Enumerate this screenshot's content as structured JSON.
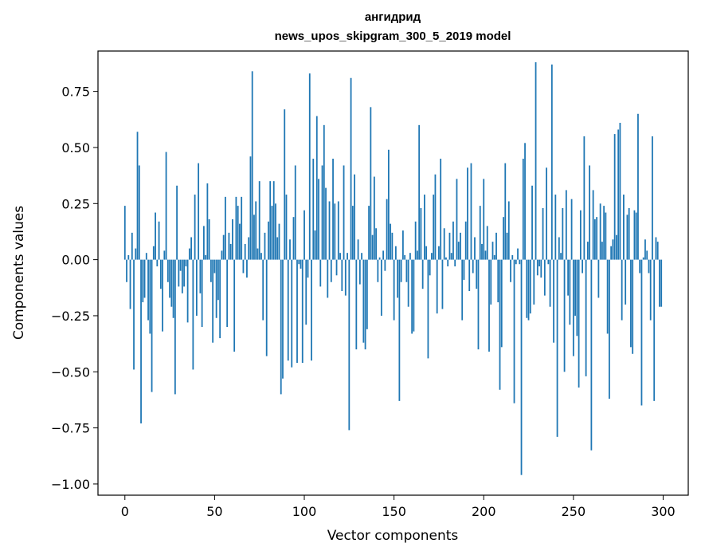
{
  "chart_data": {
    "type": "bar",
    "title": "ангидрид",
    "subtitle": "news_upos_skipgram_300_5_2019 model",
    "xlabel": "Vector components",
    "ylabel": "Components values",
    "xlim": [
      -15,
      314
    ],
    "ylim": [
      -1.05,
      0.93
    ],
    "xticks": [
      0,
      50,
      100,
      150,
      200,
      250,
      300
    ],
    "yticks": [
      -1.0,
      -0.75,
      -0.5,
      -0.25,
      0.0,
      0.25,
      0.5,
      0.75
    ],
    "ytick_labels": [
      "−1.00",
      "−0.75",
      "−0.50",
      "−0.25",
      "0.00",
      "0.25",
      "0.50",
      "0.75"
    ],
    "grid": false,
    "bar_color": "#1f77b4",
    "x": [
      0,
      1,
      2,
      3,
      4,
      5,
      6,
      7,
      8,
      9,
      10,
      11,
      12,
      13,
      14,
      15,
      16,
      17,
      18,
      19,
      20,
      21,
      22,
      23,
      24,
      25,
      26,
      27,
      28,
      29,
      30,
      31,
      32,
      33,
      34,
      35,
      36,
      37,
      38,
      39,
      40,
      41,
      42,
      43,
      44,
      45,
      46,
      47,
      48,
      49,
      50,
      51,
      52,
      53,
      54,
      55,
      56,
      57,
      58,
      59,
      60,
      61,
      62,
      63,
      64,
      65,
      66,
      67,
      68,
      69,
      70,
      71,
      72,
      73,
      74,
      75,
      76,
      77,
      78,
      79,
      80,
      81,
      82,
      83,
      84,
      85,
      86,
      87,
      88,
      89,
      90,
      91,
      92,
      93,
      94,
      95,
      96,
      97,
      98,
      99,
      100,
      101,
      102,
      103,
      104,
      105,
      106,
      107,
      108,
      109,
      110,
      111,
      112,
      113,
      114,
      115,
      116,
      117,
      118,
      119,
      120,
      121,
      122,
      123,
      124,
      125,
      126,
      127,
      128,
      129,
      130,
      131,
      132,
      133,
      134,
      135,
      136,
      137,
      138,
      139,
      140,
      141,
      142,
      143,
      144,
      145,
      146,
      147,
      148,
      149,
      150,
      151,
      152,
      153,
      154,
      155,
      156,
      157,
      158,
      159,
      160,
      161,
      162,
      163,
      164,
      165,
      166,
      167,
      168,
      169,
      170,
      171,
      172,
      173,
      174,
      175,
      176,
      177,
      178,
      179,
      180,
      181,
      182,
      183,
      184,
      185,
      186,
      187,
      188,
      189,
      190,
      191,
      192,
      193,
      194,
      195,
      196,
      197,
      198,
      199,
      200,
      201,
      202,
      203,
      204,
      205,
      206,
      207,
      208,
      209,
      210,
      211,
      212,
      213,
      214,
      215,
      216,
      217,
      218,
      219,
      220,
      221,
      222,
      223,
      224,
      225,
      226,
      227,
      228,
      229,
      230,
      231,
      232,
      233,
      234,
      235,
      236,
      237,
      238,
      239,
      240,
      241,
      242,
      243,
      244,
      245,
      246,
      247,
      248,
      249,
      250,
      251,
      252,
      253,
      254,
      255,
      256,
      257,
      258,
      259,
      260,
      261,
      262,
      263,
      264,
      265,
      266,
      267,
      268,
      269,
      270,
      271,
      272,
      273,
      274,
      275,
      276,
      277,
      278,
      279,
      280,
      281,
      282,
      283,
      284,
      285,
      286,
      287,
      288,
      289,
      290,
      291,
      292,
      293,
      294,
      295,
      296,
      297,
      298,
      299
    ],
    "values": [
      0.24,
      -0.1,
      0.02,
      -0.22,
      0.12,
      -0.49,
      0.05,
      0.57,
      0.42,
      -0.73,
      -0.19,
      -0.17,
      0.03,
      -0.27,
      -0.33,
      -0.59,
      0.06,
      0.21,
      -0.03,
      0.17,
      -0.13,
      -0.32,
      0.04,
      0.48,
      -0.1,
      -0.17,
      -0.21,
      -0.26,
      -0.6,
      0.33,
      -0.12,
      -0.05,
      -0.15,
      -0.12,
      -0.03,
      -0.28,
      0.05,
      0.1,
      -0.49,
      0.29,
      -0.25,
      0.43,
      -0.15,
      -0.3,
      0.15,
      0.02,
      0.34,
      0.18,
      -0.1,
      -0.37,
      -0.06,
      -0.26,
      -0.18,
      -0.35,
      0.04,
      0.11,
      0.28,
      -0.3,
      0.12,
      0.07,
      0.18,
      -0.41,
      0.28,
      0.24,
      0.16,
      0.28,
      -0.06,
      0.07,
      -0.08,
      0.1,
      0.46,
      0.84,
      0.2,
      0.26,
      0.05,
      0.35,
      0.03,
      -0.27,
      0.12,
      -0.43,
      0.17,
      0.35,
      0.24,
      0.35,
      0.25,
      0.1,
      0.16,
      -0.6,
      -0.53,
      0.67,
      0.29,
      -0.45,
      0.09,
      -0.48,
      0.19,
      0.42,
      -0.46,
      -0.02,
      -0.04,
      -0.46,
      0.22,
      -0.29,
      -0.08,
      0.83,
      -0.45,
      0.45,
      0.13,
      0.64,
      0.36,
      -0.12,
      0.42,
      0.6,
      0.32,
      -0.17,
      0.26,
      -0.1,
      0.45,
      0.25,
      -0.07,
      0.26,
      0.03,
      -0.14,
      0.42,
      -0.16,
      0.03,
      -0.76,
      0.81,
      0.24,
      0.38,
      -0.4,
      0.09,
      -0.11,
      0.03,
      -0.37,
      -0.4,
      -0.31,
      0.24,
      0.68,
      0.11,
      0.37,
      0.14,
      -0.1,
      0.01,
      -0.25,
      0.04,
      -0.05,
      0.27,
      0.49,
      0.16,
      0.12,
      -0.27,
      0.06,
      -0.17,
      -0.63,
      -0.1,
      0.13,
      0.02,
      -0.1,
      -0.21,
      0.03,
      -0.33,
      -0.32,
      0.17,
      0.04,
      0.6,
      0.23,
      -0.13,
      0.29,
      0.06,
      -0.44,
      -0.07,
      0.03,
      0.29,
      0.38,
      -0.24,
      0.06,
      0.45,
      -0.22,
      0.14,
      0.01,
      -0.03,
      0.12,
      0.03,
      0.17,
      -0.03,
      0.36,
      0.08,
      0.12,
      -0.27,
      -0.09,
      0.17,
      0.41,
      -0.14,
      0.43,
      -0.06,
      0.1,
      -0.13,
      -0.4,
      0.24,
      0.07,
      0.36,
      0.04,
      0.15,
      -0.41,
      -0.2,
      0.08,
      0.02,
      0.12,
      -0.19,
      -0.58,
      -0.39,
      0.19,
      0.43,
      0.12,
      0.26,
      -0.1,
      0.02,
      -0.64,
      -0.02,
      0.05,
      -0.02,
      -0.96,
      0.45,
      0.52,
      -0.26,
      -0.27,
      -0.24,
      0.33,
      -0.2,
      0.88,
      -0.07,
      -0.03,
      -0.08,
      0.23,
      -0.16,
      0.41,
      -0.02,
      -0.21,
      0.87,
      -0.37,
      0.29,
      -0.79,
      0.1,
      0.03,
      0.23,
      -0.5,
      0.31,
      -0.16,
      -0.29,
      0.27,
      -0.43,
      -0.25,
      -0.34,
      -0.57,
      0.22,
      -0.06,
      0.55,
      -0.52,
      0.08,
      0.42,
      -0.85,
      0.31,
      0.18,
      0.19,
      -0.17,
      0.25,
      0.08,
      0.24,
      0.21,
      -0.33,
      -0.62,
      0.06,
      0.09,
      0.56,
      0.11,
      0.58,
      0.61,
      -0.27,
      0.29,
      -0.2,
      0.2,
      0.23,
      -0.39,
      -0.42,
      0.22,
      0.21,
      0.65,
      -0.06,
      -0.65,
      0.01,
      0.09,
      0.04,
      -0.06,
      -0.27,
      0.55,
      -0.63,
      0.1,
      0.08,
      -0.21,
      -0.21
    ]
  }
}
